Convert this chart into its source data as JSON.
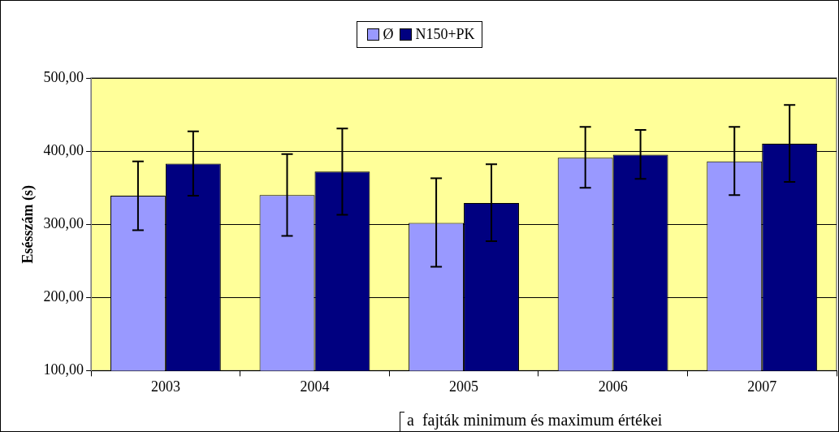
{
  "chart_data": {
    "type": "bar",
    "categories": [
      "2003",
      "2004",
      "2005",
      "2006",
      "2007"
    ],
    "series": [
      {
        "name": "Ø",
        "color": "#9999ff",
        "values": [
          339,
          340,
          302,
          391,
          386
        ],
        "errors": [
          [
            292,
            386
          ],
          [
            284,
            396
          ],
          [
            242,
            363
          ],
          [
            350,
            433
          ],
          [
            340,
            433
          ]
        ]
      },
      {
        "name": "N150+PK",
        "color": "#000080",
        "values": [
          383,
          372,
          329,
          395,
          410
        ],
        "errors": [
          [
            339,
            427
          ],
          [
            313,
            431
          ],
          [
            277,
            382
          ],
          [
            362,
            429
          ],
          [
            358,
            463
          ]
        ]
      }
    ],
    "ylabel": "Esésszám (s)",
    "ylim": [
      100,
      500
    ],
    "yticks": [
      {
        "value": 100,
        "label": "100,00"
      },
      {
        "value": 200,
        "label": "200,00"
      },
      {
        "value": 300,
        "label": "300,00"
      },
      {
        "value": 400,
        "label": "400,00"
      },
      {
        "value": 500,
        "label": "500,00"
      }
    ],
    "grid": "y",
    "legend": "top",
    "annotations": [
      "a  fajták minimum és maximum értékei"
    ]
  }
}
